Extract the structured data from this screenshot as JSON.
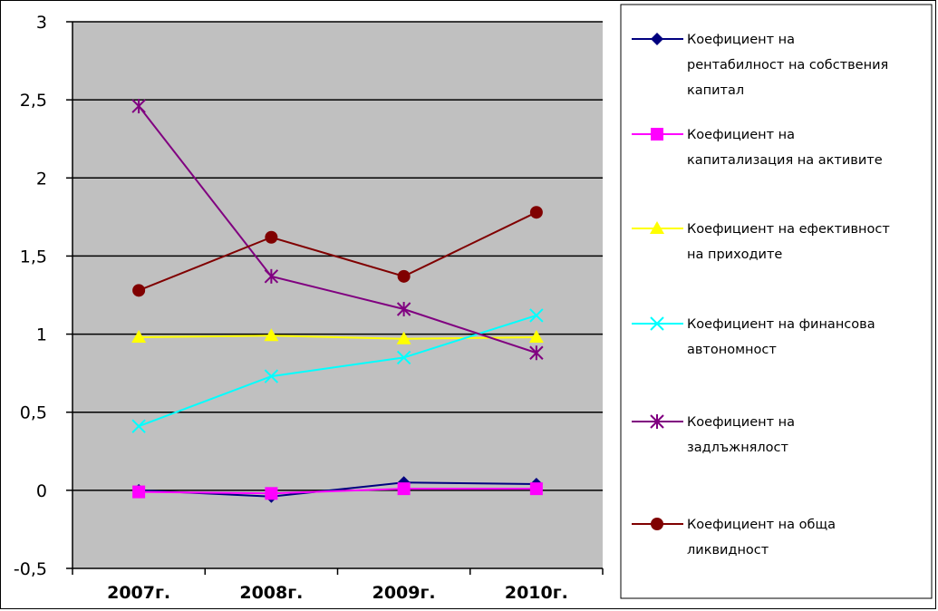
{
  "chart_data": {
    "type": "line",
    "categories": [
      "2007г.",
      "2008г.",
      "2009г.",
      "2010г."
    ],
    "y_ticks": [
      "-0,5",
      "0",
      "0,5",
      "1",
      "1,5",
      "2",
      "2,5",
      "3"
    ],
    "ylim": [
      -0.5,
      3
    ],
    "grid": true,
    "legend_position": "right",
    "series": [
      {
        "name": "Коефициент на рентабилност на собствения капитал",
        "legend_lines": [
          "Коефициент на",
          "рентабилност на собствения",
          "капитал"
        ],
        "values": [
          0,
          -0.04,
          0.05,
          0.04
        ],
        "color": "#00007f",
        "marker": "diamond"
      },
      {
        "name": "Коефициент на капитализация на активите",
        "legend_lines": [
          "Коефициент на",
          "капитализация на активите"
        ],
        "values": [
          -0.01,
          -0.02,
          0.01,
          0.01
        ],
        "color": "#ff00ff",
        "marker": "square"
      },
      {
        "name": "Коефициент на ефективност на приходите",
        "legend_lines": [
          "Коефициент на ефективност",
          "на приходите"
        ],
        "values": [
          0.98,
          0.99,
          0.97,
          0.98
        ],
        "color": "#ffff00",
        "marker": "triangle"
      },
      {
        "name": "Коефициент на финансова автономност",
        "legend_lines": [
          "Коефициент на финансова",
          "автономност"
        ],
        "values": [
          0.41,
          0.73,
          0.85,
          1.12
        ],
        "color": "#00ffff",
        "marker": "x"
      },
      {
        "name": "Коефициент на задлъжнялост",
        "legend_lines": [
          "Коефициент на",
          "задлъжнялост"
        ],
        "values": [
          2.46,
          1.37,
          1.16,
          0.88
        ],
        "color": "#800080",
        "marker": "star"
      },
      {
        "name": "Коефициент на обща ликвидност",
        "legend_lines": [
          "Коефициент на обща",
          "ликвидност"
        ],
        "values": [
          1.28,
          1.62,
          1.37,
          1.78
        ],
        "color": "#800000",
        "marker": "circle"
      }
    ]
  }
}
